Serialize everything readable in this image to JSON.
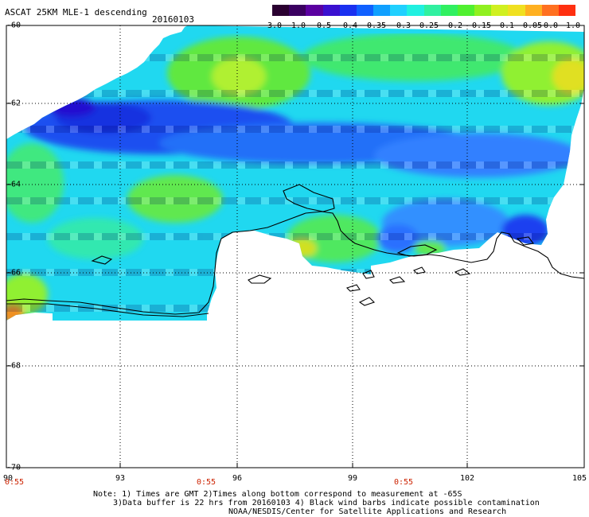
{
  "header": {
    "title": "ASCAT 25KM MLE-1 descending",
    "date": "20160103"
  },
  "colorbar": {
    "ticks": [
      "-3.0",
      "-1.0",
      "-0.5",
      "-0.4",
      "-0.35",
      "-0.3",
      "-0.25",
      "-0.2",
      "-0.15",
      "-0.1",
      "-0.05",
      "0.0",
      "1.0"
    ],
    "colors": [
      "#2a0030",
      "#3a0060",
      "#5a00a0",
      "#3a10d0",
      "#1a30f0",
      "#1060ff",
      "#10a0ff",
      "#20d0ff",
      "#20f0e0",
      "#30f0a0",
      "#30f060",
      "#50f030",
      "#90f020",
      "#d0f020",
      "#f0e020",
      "#ffb020",
      "#ff7020",
      "#ff3010"
    ]
  },
  "axes": {
    "y_labels": [
      "-60",
      "-62",
      "-64",
      "-66",
      "-68",
      "-70"
    ],
    "x_labels": [
      "90",
      "93",
      "96",
      "99",
      "102",
      "105"
    ],
    "time_labels": [
      "0:55",
      "0:55",
      "0:55"
    ]
  },
  "footer": {
    "note_line1": "Note: 1) Times are GMT 2)Times along bottom correspond to measurement at -65S",
    "note_line2": "3)Data buffer is 22 hrs from 20160103 4) Black wind barbs indicate possible contamination",
    "credit": "NOAA/NESDIS/Center for Satellite Applications and Research"
  }
}
